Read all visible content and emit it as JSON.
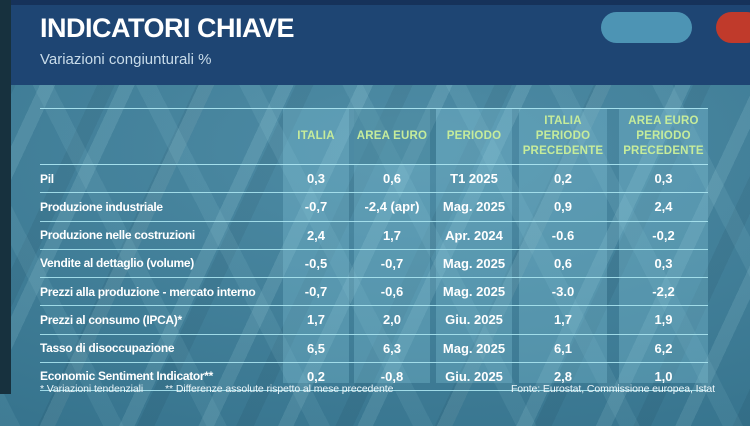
{
  "header": {
    "title": "INDICATORI CHIAVE",
    "subtitle": "Variazioni congiunturali %"
  },
  "colors": {
    "title_band_navy": "#1e4573",
    "background_teal": "#3a7f9b",
    "header_text_green": "#c6ec9b",
    "table_line_cyan": "#aae4f0",
    "blue_pill": "#4d94b4",
    "red_pill": "#c03a2b"
  },
  "chart_data": {
    "type": "table",
    "title": "INDICATORI CHIAVE",
    "subtitle": "Variazioni congiunturali %",
    "columns": [
      "ITALIA",
      "AREA EURO",
      "PERIODO",
      "ITALIA PERIODO PRECEDENTE",
      "AREA EURO PERIODO PRECEDENTE"
    ],
    "rows": [
      {
        "label": "Pil",
        "values": [
          "0,3",
          "0,6",
          "T1 2025",
          "0,2",
          "0,3"
        ]
      },
      {
        "label": "Produzione industriale",
        "values": [
          "-0,7",
          "-2,4 (apr)",
          "Mag. 2025",
          "0,9",
          "2,4"
        ]
      },
      {
        "label": "Produzione nelle costruzioni",
        "values": [
          "2,4",
          "1,7",
          "Apr. 2024",
          "-0.6",
          "-0,2"
        ]
      },
      {
        "label": "Vendite al dettaglio (volume)",
        "values": [
          "-0,5",
          "-0,7",
          "Mag. 2025",
          "0,6",
          "0,3"
        ]
      },
      {
        "label": "Prezzi alla produzione - mercato interno",
        "values": [
          "-0,7",
          "-0,6",
          "Mag. 2025",
          "-3.0",
          "-2,2"
        ]
      },
      {
        "label": "Prezzi al consumo (IPCA)*",
        "values": [
          "1,7",
          "2,0",
          "Giu. 2025",
          "1,7",
          "1,9"
        ]
      },
      {
        "label": "Tasso di disoccupazione",
        "values": [
          "6,5",
          "6,3",
          "Mag. 2025",
          "6,1",
          "6,2"
        ]
      },
      {
        "label": "Economic Sentiment Indicator**",
        "values": [
          "0,2",
          "-0,8",
          "Giu. 2025",
          "2,8",
          "1,0"
        ]
      }
    ]
  },
  "footnotes": {
    "note1": "* Variazioni tendenziali",
    "note2": "** Differenze assolute rispetto al mese precedente",
    "source": "Fonte: Eurostat, Commissione europea, Istat"
  }
}
